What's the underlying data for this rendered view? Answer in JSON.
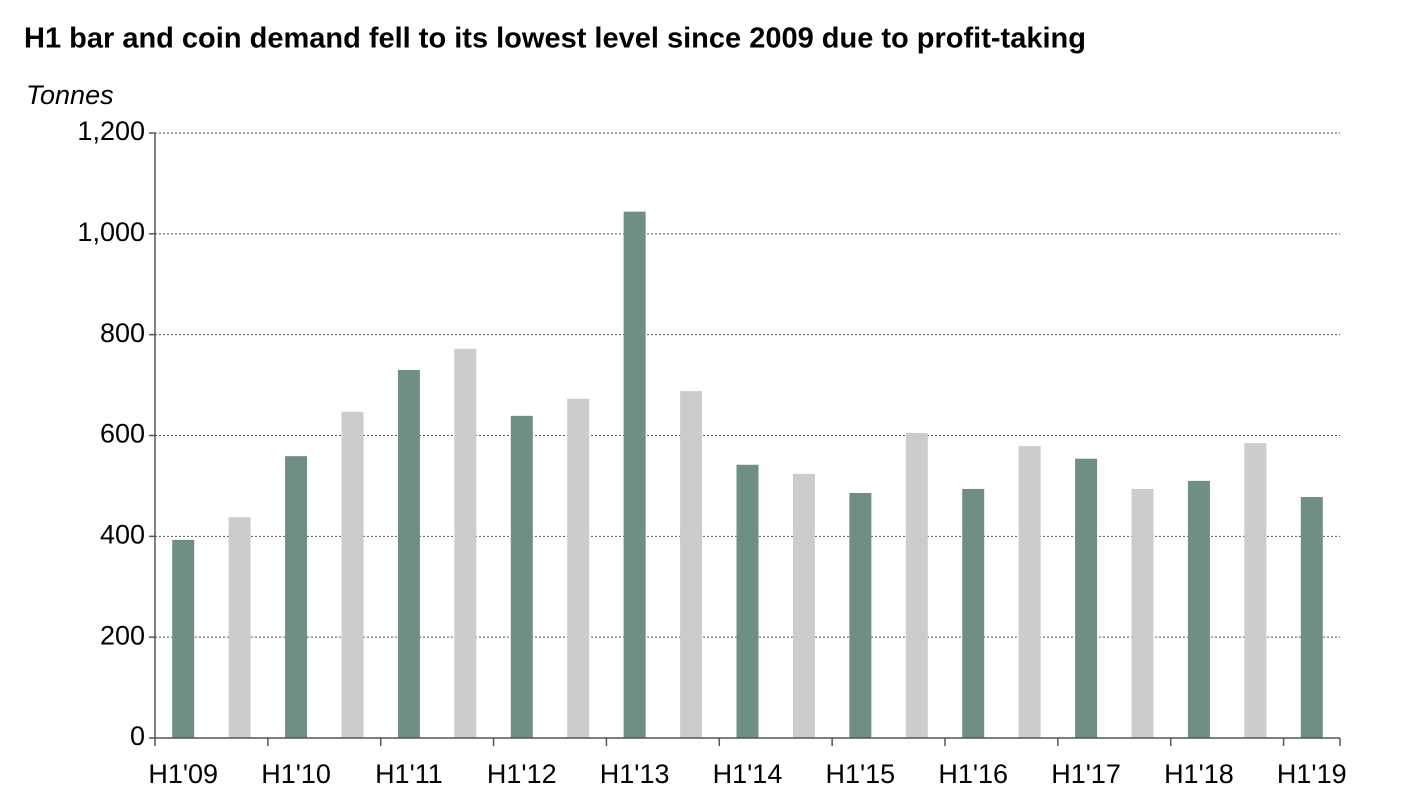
{
  "chart_data": {
    "type": "bar",
    "title": "H1 bar and coin demand fell to its lowest level since 2009 due to profit-taking",
    "y_label": "Tonnes",
    "categories": [
      "H1'09",
      null,
      "H1'10",
      null,
      "H1'11",
      null,
      "H1'12",
      null,
      "H1'13",
      null,
      "H1'14",
      null,
      "H1'15",
      null,
      "H1'16",
      null,
      "H1'17",
      null,
      "H1'18",
      null,
      "H1'19"
    ],
    "values": [
      393,
      438,
      559,
      647,
      730,
      772,
      639,
      673,
      1044,
      688,
      542,
      524,
      486,
      605,
      494,
      579,
      554,
      494,
      510,
      585,
      478
    ],
    "colors": [
      "#6e8f82",
      "#cccccc"
    ],
    "ylim": [
      0,
      1200
    ],
    "yticks": [
      0,
      200,
      400,
      600,
      800,
      {
        "value": 1000,
        "label": "1,000"
      },
      {
        "value": 1200,
        "label": "1,200"
      }
    ],
    "grid": true
  }
}
